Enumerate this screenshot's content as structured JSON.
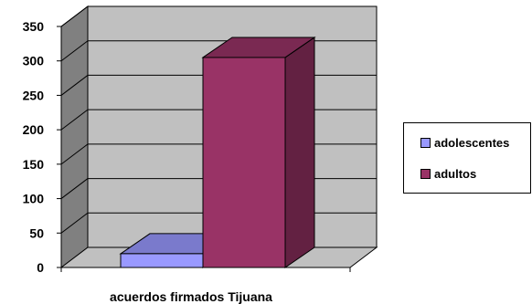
{
  "chart_data": {
    "type": "bar",
    "categories": [
      "acuerdos firmados Tijuana"
    ],
    "series": [
      {
        "name": "adolescentes",
        "values": [
          20
        ],
        "color": "#9999ff"
      },
      {
        "name": "adultos",
        "values": [
          305
        ],
        "color": "#993366"
      }
    ],
    "xlabel": "acuerdos firmados Tijuana",
    "ylabel": "",
    "ylim": [
      0,
      350
    ],
    "yticks": [
      0,
      50,
      100,
      150,
      200,
      250,
      300,
      350
    ],
    "grid": true,
    "legend_position": "right"
  }
}
